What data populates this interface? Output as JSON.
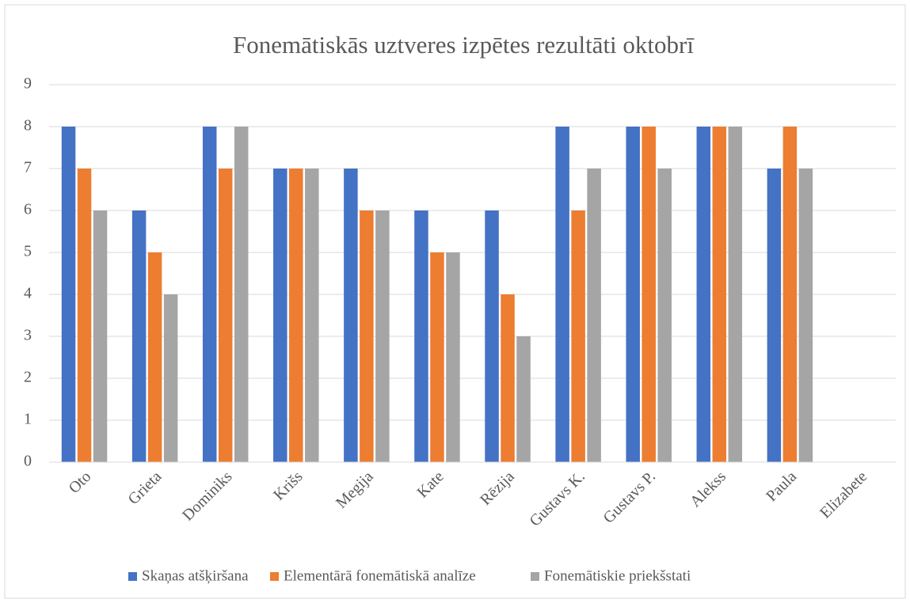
{
  "chart_data": {
    "type": "bar",
    "title": "Fonemātiskās uztveres izpētes rezultāti oktobrī",
    "categories": [
      "Oto",
      "Grieta",
      "Dominiks",
      "Krišs",
      "Megija",
      "Kate",
      "Rēzija",
      "Gustavs K.",
      "Gustavs P.",
      "Alekss",
      "Paula",
      "Elizabete"
    ],
    "series": [
      {
        "name": "Skaņas atšķiršana",
        "color": "#4472c4",
        "values": [
          8,
          6,
          8,
          7,
          7,
          6,
          6,
          8,
          8,
          8,
          7,
          null
        ]
      },
      {
        "name": "Elementārā fonemātiskā analīze",
        "color": "#ed7d31",
        "values": [
          7,
          5,
          7,
          7,
          6,
          5,
          4,
          6,
          8,
          8,
          8,
          null
        ]
      },
      {
        "name": "Fonemātiskie priekšstati",
        "color": "#a5a5a5",
        "values": [
          6,
          4,
          8,
          7,
          6,
          5,
          3,
          7,
          7,
          8,
          7,
          null
        ]
      }
    ],
    "ylim": [
      0,
      9
    ],
    "yticks": [
      0,
      1,
      2,
      3,
      4,
      5,
      6,
      7,
      8,
      9
    ],
    "grid": true,
    "legend": "bottom"
  }
}
